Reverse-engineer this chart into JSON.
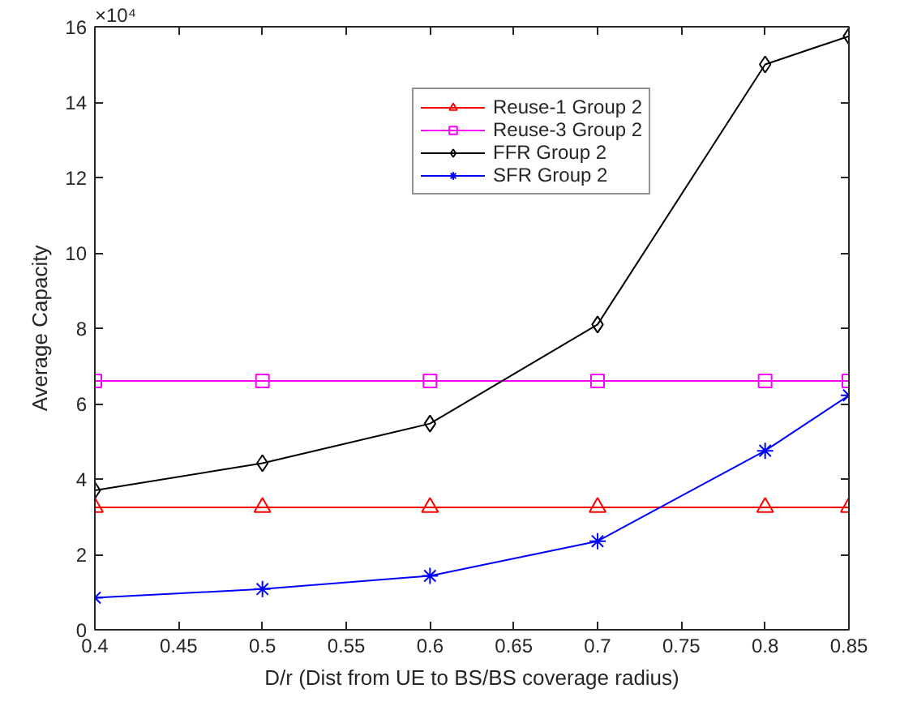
{
  "chart_data": {
    "type": "line",
    "xlabel": "D/r (Dist from UE to BS/BS coverage radius)",
    "ylabel": "Average Capacity",
    "annotations": [
      "×10⁴"
    ],
    "x": [
      0.4,
      0.5,
      0.6,
      0.7,
      0.8,
      0.85
    ],
    "series": [
      {
        "name": "Reuse-1 Group 2",
        "color": "#ff0000",
        "marker": "triangle",
        "values": [
          3.25,
          3.25,
          3.25,
          3.25,
          3.25,
          3.25
        ]
      },
      {
        "name": "Reuse-3 Group 2",
        "color": "#ff00ff",
        "marker": "square",
        "values": [
          6.6,
          6.6,
          6.6,
          6.6,
          6.6,
          6.6
        ]
      },
      {
        "name": "FFR Group 2",
        "color": "#000000",
        "marker": "diamond",
        "values": [
          3.7,
          4.42,
          5.47,
          8.1,
          15.0,
          15.75
        ]
      },
      {
        "name": "SFR Group 2",
        "color": "#0000ff",
        "marker": "cross",
        "values": [
          0.85,
          1.08,
          1.43,
          2.35,
          4.75,
          6.22
        ]
      }
    ],
    "xlim": [
      0.4,
      0.85
    ],
    "xticks": [
      0.4,
      0.45,
      0.5,
      0.55,
      0.6,
      0.65,
      0.7,
      0.75,
      0.8,
      0.85
    ],
    "ylim": [
      0,
      16
    ],
    "yticks": [
      0,
      2,
      4,
      6,
      8,
      10,
      12,
      14,
      16
    ],
    "grid": false,
    "legend": "top right",
    "line_style": "solid"
  }
}
